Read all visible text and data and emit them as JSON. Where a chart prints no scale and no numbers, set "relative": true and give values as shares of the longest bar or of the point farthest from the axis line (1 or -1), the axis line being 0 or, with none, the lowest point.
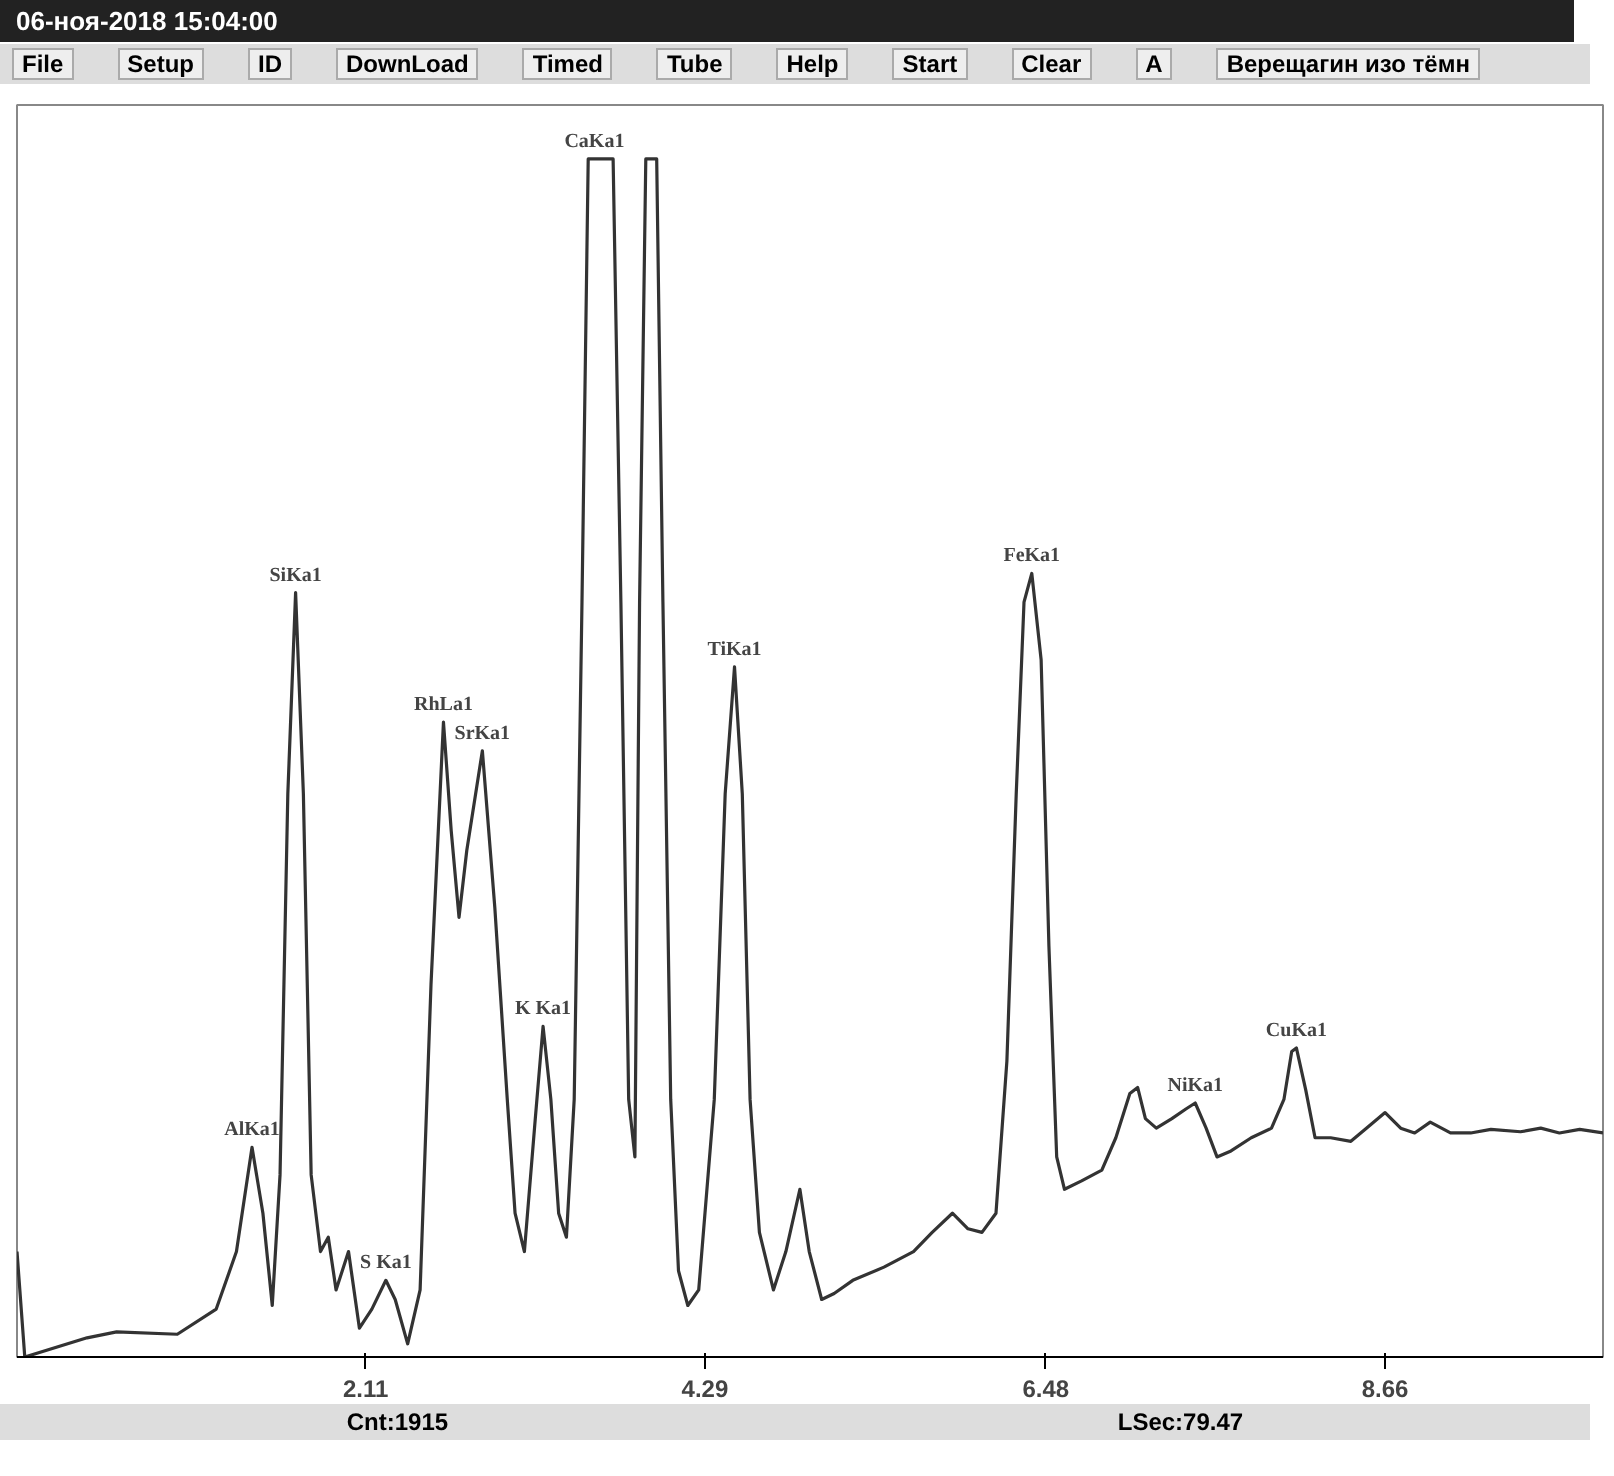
{
  "chart_data": {
    "type": "line",
    "title": "06-ноя-2018 15:04:00",
    "relative": true,
    "grid": false,
    "marker": "none",
    "line_style": "solid",
    "xlim": [
      -0.13,
      10.06
    ],
    "xticks": [
      2.11,
      4.29,
      6.48,
      8.66
    ],
    "x": [
      -0.13,
      -0.08,
      0.32,
      0.51,
      0.9,
      1.15,
      1.28,
      1.38,
      1.45,
      1.51,
      1.56,
      1.61,
      1.66,
      1.71,
      1.76,
      1.82,
      1.87,
      1.92,
      2.0,
      2.07,
      2.15,
      2.24,
      2.3,
      2.38,
      2.46,
      2.53,
      2.61,
      2.66,
      2.71,
      2.76,
      2.86,
      2.94,
      3.02,
      3.07,
      3.13,
      3.2,
      3.25,
      3.3,
      3.35,
      3.4,
      3.45,
      3.5,
      3.54,
      3.58,
      3.64,
      3.7,
      3.75,
      3.8,
      3.84,
      3.87,
      3.91,
      3.98,
      4.02,
      4.07,
      4.12,
      4.18,
      4.25,
      4.35,
      4.42,
      4.48,
      4.53,
      4.58,
      4.64,
      4.73,
      4.81,
      4.9,
      4.96,
      5.04,
      5.12,
      5.24,
      5.44,
      5.63,
      5.75,
      5.88,
      5.98,
      6.07,
      6.16,
      6.23,
      6.29,
      6.34,
      6.39,
      6.45,
      6.5,
      6.55,
      6.6,
      6.71,
      6.84,
      6.93,
      7.02,
      7.07,
      7.12,
      7.19,
      7.29,
      7.38,
      7.44,
      7.51,
      7.58,
      7.67,
      7.8,
      7.93,
      8.01,
      8.06,
      8.09,
      8.15,
      8.21,
      8.31,
      8.44,
      8.54,
      8.66,
      8.76,
      8.85,
      8.95,
      9.08,
      9.21,
      9.34,
      9.53,
      9.66,
      9.78,
      9.91,
      10.06
    ],
    "series": [
      {
        "color": "#333333",
        "values": [
          0.088,
          0,
          0.016,
          0.021,
          0.019,
          0.04,
          0.088,
          0.175,
          0.12,
          0.043,
          0.152,
          0.47,
          0.638,
          0.47,
          0.152,
          0.088,
          0.1,
          0.056,
          0.088,
          0.024,
          0.04,
          0.064,
          0.048,
          0.011,
          0.056,
          0.311,
          0.53,
          0.439,
          0.367,
          0.423,
          0.506,
          0.375,
          0.215,
          0.12,
          0.088,
          0.199,
          0.276,
          0.215,
          0.12,
          0.1,
          0.215,
          0.63,
          1,
          1,
          1,
          1,
          0.63,
          0.215,
          0.167,
          0.63,
          1,
          1,
          0.63,
          0.215,
          0.072,
          0.043,
          0.056,
          0.215,
          0.47,
          0.576,
          0.47,
          0.215,
          0.104,
          0.056,
          0.088,
          0.14,
          0.088,
          0.048,
          0.053,
          0.064,
          0.075,
          0.088,
          0.104,
          0.12,
          0.107,
          0.104,
          0.12,
          0.247,
          0.47,
          0.63,
          0.654,
          0.582,
          0.343,
          0.167,
          0.14,
          0.147,
          0.156,
          0.183,
          0.22,
          0.225,
          0.199,
          0.191,
          0.199,
          0.207,
          0.212,
          0.191,
          0.167,
          0.172,
          0.183,
          0.191,
          0.215,
          0.255,
          0.258,
          0.223,
          0.183,
          0.183,
          0.18,
          0.191,
          0.204,
          0.191,
          0.187,
          0.196,
          0.187,
          0.187,
          0.19,
          0.188,
          0.191,
          0.187,
          0.19,
          0.187
        ]
      }
    ],
    "annotations": [
      {
        "text": "AlKa1",
        "x": 1.38,
        "y": 0.175
      },
      {
        "text": "SiKa1",
        "x": 1.66,
        "y": 0.638
      },
      {
        "text": "S Ka1",
        "x": 2.24,
        "y": 0.064
      },
      {
        "text": "RhLa1",
        "x": 2.61,
        "y": 0.53
      },
      {
        "text": "SrKa1",
        "x": 2.86,
        "y": 0.506
      },
      {
        "text": "K Ka1",
        "x": 3.25,
        "y": 0.276
      },
      {
        "text": "CaKa1",
        "x": 3.58,
        "y": 1
      },
      {
        "text": "TiKa1",
        "x": 4.48,
        "y": 0.576
      },
      {
        "text": "FeKa1",
        "x": 6.39,
        "y": 0.654
      },
      {
        "text": "NiKa1",
        "x": 7.44,
        "y": 0.212
      },
      {
        "text": "CuKa1",
        "x": 8.09,
        "y": 0.258
      },
      "File",
      "Setup",
      "ID",
      "DownLoad",
      "Timed",
      "Tube",
      "Help",
      "Start",
      "Clear",
      "A",
      "Верещагин изо тёмн",
      "Cnt:1915",
      "LSec:79.47"
    ]
  }
}
